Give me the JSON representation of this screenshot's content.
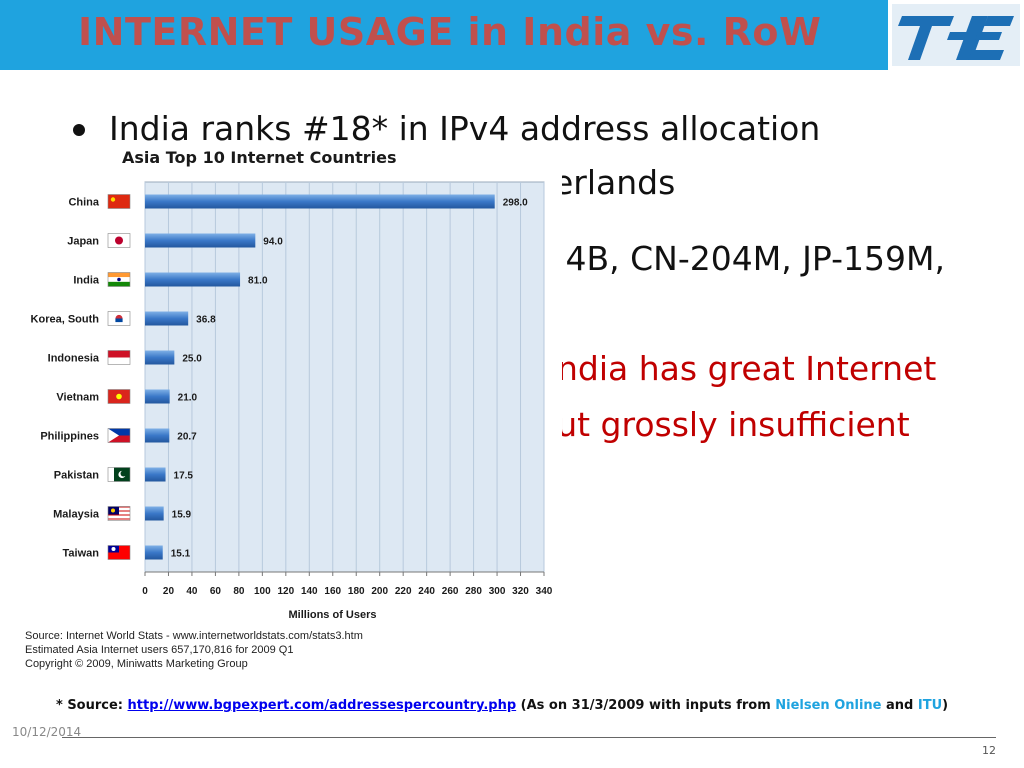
{
  "slide": {
    "title": "INTERNET USAGE in India vs. RoW",
    "date": "10/12/2014",
    "page_number": "12",
    "logo_icon": "tec-logo-icon",
    "colors": {
      "header": "#1fa3df",
      "title": "#c0504d",
      "emphasis": "#c00000",
      "bar": "#3a78c8"
    }
  },
  "bullets": [
    {
      "text": "India   ranks   #18*   in   IPv4   address   allocation",
      "color": "dark"
    },
    {
      "text": "erlands",
      "color": "dark"
    },
    {
      "text": ".4B, CN-204M, JP-159M,",
      "color": "dark"
    },
    {
      "text": "ndia  has  great  Internet",
      "color": "red"
    },
    {
      "text": "out     grossly     insufficient",
      "color": "red"
    }
  ],
  "chart_data": {
    "type": "bar",
    "orientation": "horizontal",
    "title": "Asia Top 10 Internet Countries",
    "xlabel": "Millions of Users",
    "ylabel": "",
    "categories": [
      "China",
      "Japan",
      "India",
      "Korea, South",
      "Indonesia",
      "Vietnam",
      "Philippines",
      "Pakistan",
      "Malaysia",
      "Taiwan"
    ],
    "values": [
      298.0,
      94.0,
      81.0,
      36.8,
      25.0,
      21.0,
      20.7,
      17.5,
      15.9,
      15.1
    ],
    "value_labels": [
      "298.0",
      "94.0",
      "81.0",
      "36.8",
      "25.0",
      "21.0",
      "20.7",
      "17.5",
      "15.9",
      "15.1"
    ],
    "flags": [
      "china-flag-icon",
      "japan-flag-icon",
      "india-flag-icon",
      "south-korea-flag-icon",
      "indonesia-flag-icon",
      "vietnam-flag-icon",
      "philippines-flag-icon",
      "pakistan-flag-icon",
      "malaysia-flag-icon",
      "taiwan-flag-icon"
    ],
    "xticks": [
      "0",
      "20",
      "40",
      "60",
      "80",
      "100",
      "120",
      "140",
      "160",
      "180",
      "200",
      "220",
      "240",
      "260",
      "280",
      "300",
      "320",
      "340"
    ],
    "xlim": [
      0,
      340
    ],
    "grid": true,
    "source_lines": [
      "Source:  Internet World Stats  -  www.internetworldstats.com/stats3.htm",
      "Estimated Asia Internet users 657,170,816 for 2009 Q1",
      "Copyright © 2009, Miniwatts Marketing Group"
    ]
  },
  "footnote": {
    "prefix": "* Source: ",
    "link": "http://www.bgpexpert.com/addressespercountry.php",
    "mid": " (As on 31/3/2009 with inputs from ",
    "nielsen": "Nielsen Online",
    "and": " and ",
    "itu": "ITU",
    "suffix": ")"
  }
}
